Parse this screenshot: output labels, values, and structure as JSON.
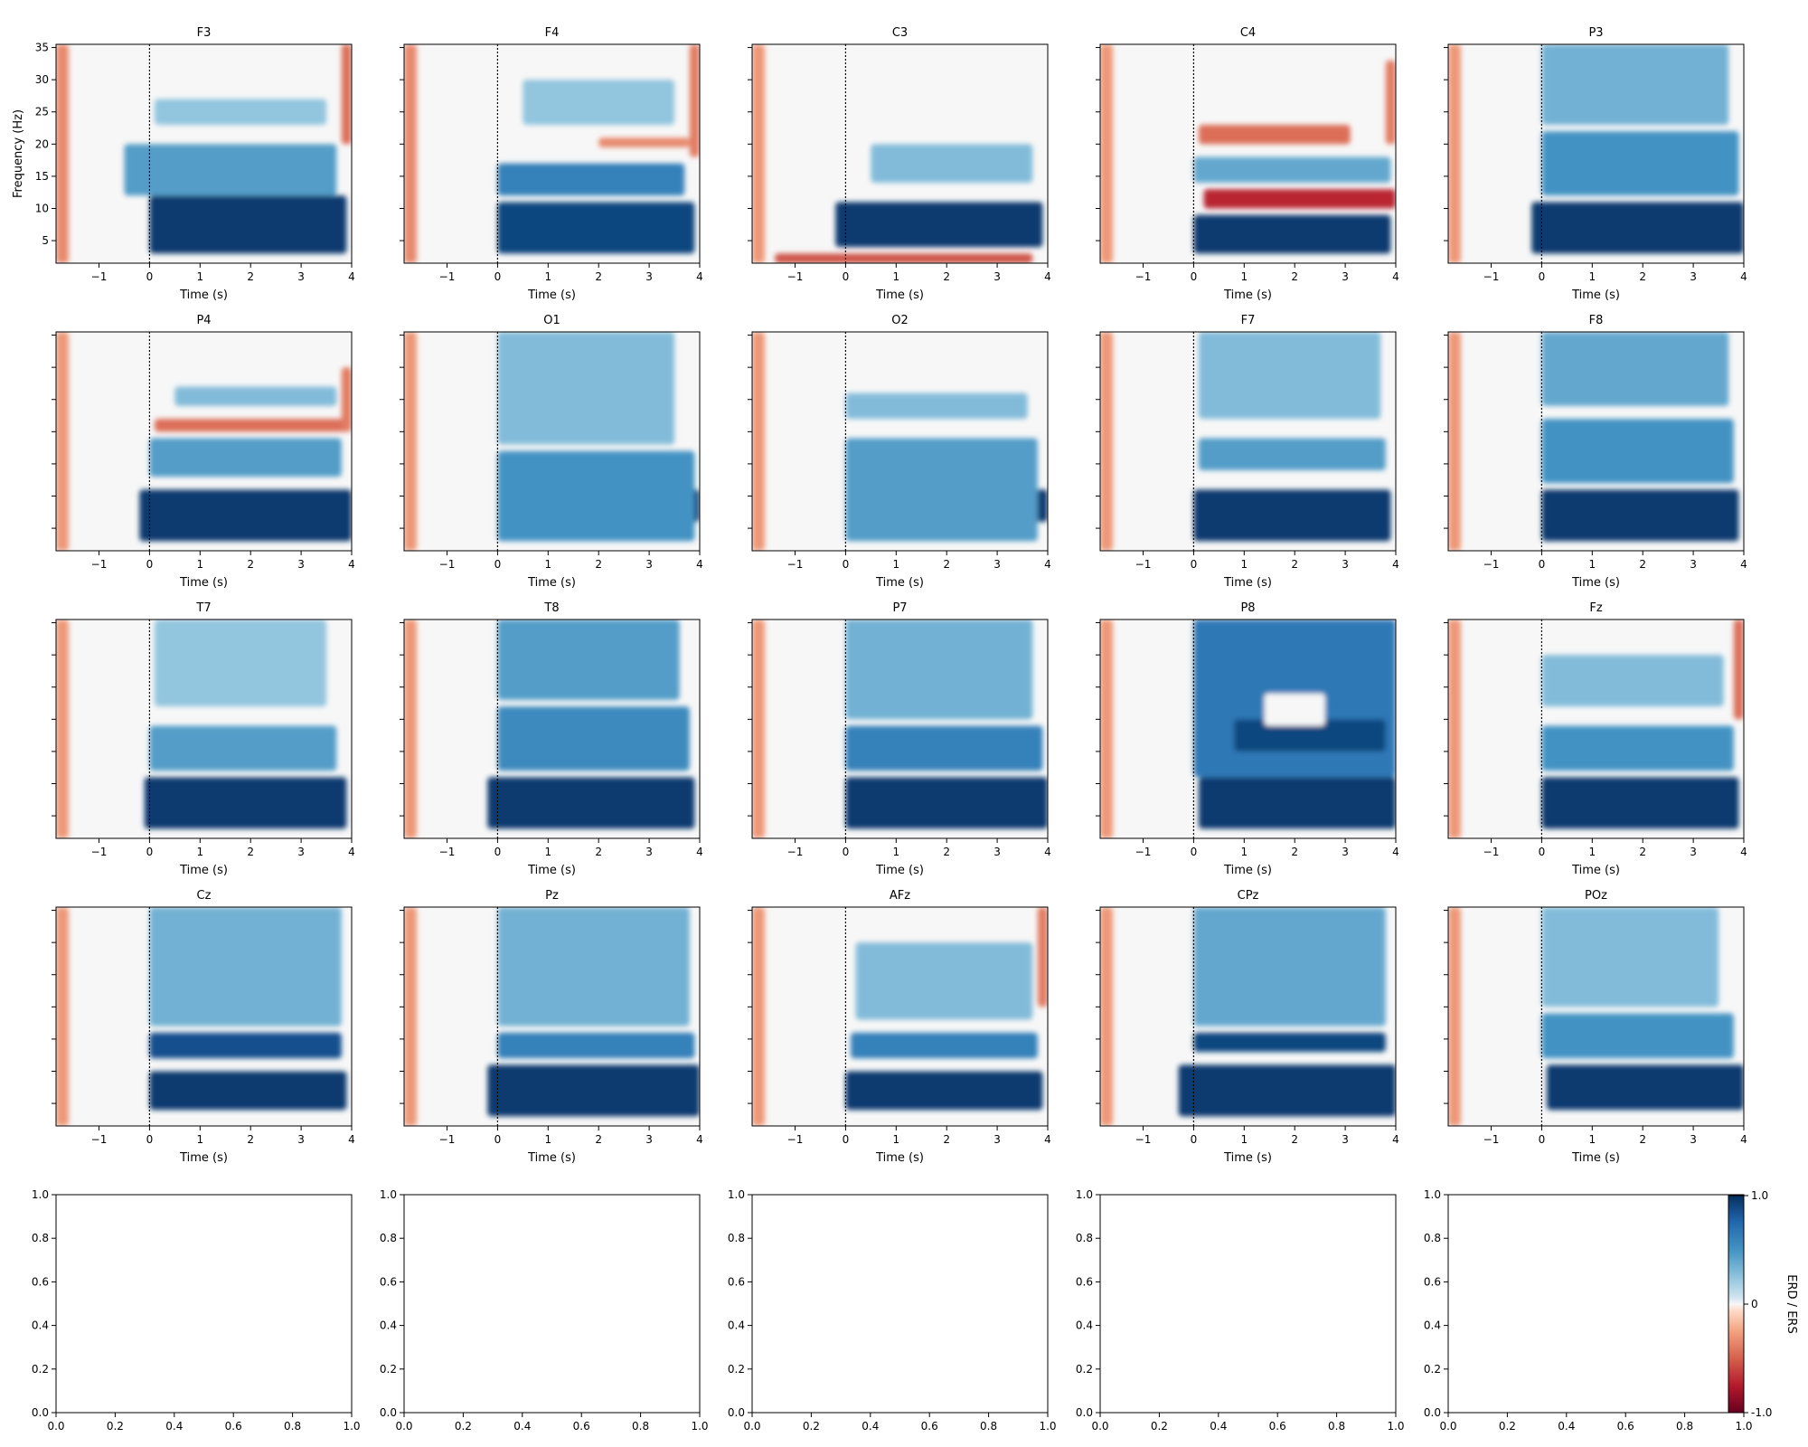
{
  "chart_data": {
    "type": "heatmap",
    "x_unit": "s",
    "xlim": [
      -1.85,
      4
    ],
    "ylim": [
      1.5,
      35.5
    ],
    "xticks": [
      -1,
      0,
      1,
      2,
      3,
      4
    ],
    "xtick_labels": [
      "−1",
      "0",
      "1",
      "2",
      "3",
      "4"
    ],
    "yticks": [
      5,
      10,
      15,
      20,
      25,
      30,
      35
    ],
    "xlabel": "Time (s)",
    "ylabel": "Frequency (Hz)",
    "event_marker_time": 0,
    "colorbar": {
      "label": "ERD / ERS",
      "ticks": [
        1.0,
        0,
        -1.0
      ],
      "tick_labels": [
        "1.0",
        "0",
        "-1.0"
      ],
      "range": [
        -1.0,
        1.0
      ],
      "colormap": "RdBu",
      "color_high": "#053061",
      "color_zero": "#f7f7f7",
      "color_low": "#67001f"
    },
    "channels": [
      {
        "name": "F3",
        "features": [
          {
            "t": [
              0,
              3.9
            ],
            "f": [
              3,
              12
            ],
            "v": 0.95
          },
          {
            "t": [
              -0.5,
              3.7
            ],
            "f": [
              12,
              20
            ],
            "v": 0.45
          },
          {
            "t": [
              0.1,
              3.5
            ],
            "f": [
              23,
              27
            ],
            "v": 0.25
          },
          {
            "t": [
              -1.85,
              -1.6
            ],
            "f": [
              1.5,
              35.5
            ],
            "v": -0.35
          },
          {
            "t": [
              3.8,
              4
            ],
            "f": [
              20,
              35.5
            ],
            "v": -0.45
          }
        ]
      },
      {
        "name": "F4",
        "features": [
          {
            "t": [
              0,
              3.9
            ],
            "f": [
              3,
              11
            ],
            "v": 0.9
          },
          {
            "t": [
              0,
              3.7
            ],
            "f": [
              12,
              17
            ],
            "v": 0.6
          },
          {
            "t": [
              0.5,
              3.5
            ],
            "f": [
              23,
              30
            ],
            "v": 0.25
          },
          {
            "t": [
              2.0,
              3.8
            ],
            "f": [
              19.5,
              21
            ],
            "v": -0.35
          },
          {
            "t": [
              -1.85,
              -1.6
            ],
            "f": [
              1.5,
              35.5
            ],
            "v": -0.35
          },
          {
            "t": [
              3.8,
              4
            ],
            "f": [
              18,
              35.5
            ],
            "v": -0.4
          }
        ]
      },
      {
        "name": "C3",
        "features": [
          {
            "t": [
              -0.2,
              3.9
            ],
            "f": [
              4,
              11
            ],
            "v": 0.95
          },
          {
            "t": [
              0.5,
              3.7
            ],
            "f": [
              14,
              20
            ],
            "v": 0.3
          },
          {
            "t": [
              -1.4,
              3.7
            ],
            "f": [
              1.5,
              3
            ],
            "v": -0.55
          },
          {
            "t": [
              -1.85,
              -1.6
            ],
            "f": [
              1.5,
              35.5
            ],
            "v": -0.3
          }
        ]
      },
      {
        "name": "C4",
        "features": [
          {
            "t": [
              0,
              3.9
            ],
            "f": [
              3,
              9
            ],
            "v": 0.95
          },
          {
            "t": [
              0.2,
              4
            ],
            "f": [
              10,
              13
            ],
            "v": -0.7
          },
          {
            "t": [
              0,
              3.9
            ],
            "f": [
              14,
              18
            ],
            "v": 0.4
          },
          {
            "t": [
              0.1,
              3.1
            ],
            "f": [
              20,
              23
            ],
            "v": -0.45
          },
          {
            "t": [
              -1.85,
              -1.6
            ],
            "f": [
              1.5,
              35.5
            ],
            "v": -0.3
          },
          {
            "t": [
              3.8,
              4
            ],
            "f": [
              20,
              33
            ],
            "v": -0.4
          }
        ]
      },
      {
        "name": "P3",
        "features": [
          {
            "t": [
              -0.2,
              4
            ],
            "f": [
              3,
              11
            ],
            "v": 0.95
          },
          {
            "t": [
              0,
              3.9
            ],
            "f": [
              12,
              22
            ],
            "v": 0.5
          },
          {
            "t": [
              0,
              3.7
            ],
            "f": [
              23,
              35.5
            ],
            "v": 0.35
          },
          {
            "t": [
              -1.85,
              -1.6
            ],
            "f": [
              1.5,
              35.5
            ],
            "v": -0.3
          }
        ]
      },
      {
        "name": "P4",
        "features": [
          {
            "t": [
              -0.2,
              4
            ],
            "f": [
              3,
              11
            ],
            "v": 0.95
          },
          {
            "t": [
              0,
              3.8
            ],
            "f": [
              13,
              19
            ],
            "v": 0.45
          },
          {
            "t": [
              0.1,
              4
            ],
            "f": [
              20,
              22
            ],
            "v": -0.45
          },
          {
            "t": [
              0.5,
              3.7
            ],
            "f": [
              24,
              27
            ],
            "v": 0.3
          },
          {
            "t": [
              -1.85,
              -1.6
            ],
            "f": [
              1.5,
              35.5
            ],
            "v": -0.3
          },
          {
            "t": [
              3.8,
              4
            ],
            "f": [
              20,
              30
            ],
            "v": -0.4
          }
        ]
      },
      {
        "name": "O1",
        "features": [
          {
            "t": [
              1.0,
              4
            ],
            "f": [
              6,
              11
            ],
            "v": 0.95
          },
          {
            "t": [
              0,
              3.9
            ],
            "f": [
              3,
              17
            ],
            "v": 0.5
          },
          {
            "t": [
              0,
              3.5
            ],
            "f": [
              18,
              35.5
            ],
            "v": 0.3
          },
          {
            "t": [
              -1.85,
              -1.6
            ],
            "f": [
              1.5,
              35.5
            ],
            "v": -0.3
          }
        ]
      },
      {
        "name": "O2",
        "features": [
          {
            "t": [
              0.5,
              4
            ],
            "f": [
              6,
              11
            ],
            "v": 0.95
          },
          {
            "t": [
              0,
              3.8
            ],
            "f": [
              3,
              19
            ],
            "v": 0.45
          },
          {
            "t": [
              0,
              3.6
            ],
            "f": [
              22,
              26
            ],
            "v": 0.3
          },
          {
            "t": [
              -1.85,
              -1.6
            ],
            "f": [
              1.5,
              35.5
            ],
            "v": -0.3
          }
        ]
      },
      {
        "name": "F7",
        "features": [
          {
            "t": [
              0,
              3.9
            ],
            "f": [
              3,
              11
            ],
            "v": 0.95
          },
          {
            "t": [
              0.1,
              3.8
            ],
            "f": [
              14,
              19
            ],
            "v": 0.45
          },
          {
            "t": [
              0.1,
              3.7
            ],
            "f": [
              22,
              35.5
            ],
            "v": 0.3
          },
          {
            "t": [
              -1.85,
              -1.6
            ],
            "f": [
              1.5,
              35.5
            ],
            "v": -0.3
          }
        ]
      },
      {
        "name": "F8",
        "features": [
          {
            "t": [
              0,
              3.9
            ],
            "f": [
              3,
              11
            ],
            "v": 0.95
          },
          {
            "t": [
              0,
              3.8
            ],
            "f": [
              12,
              22
            ],
            "v": 0.5
          },
          {
            "t": [
              0,
              3.7
            ],
            "f": [
              24,
              35.5
            ],
            "v": 0.4
          },
          {
            "t": [
              -1.85,
              -1.6
            ],
            "f": [
              1.5,
              35.5
            ],
            "v": -0.3
          }
        ]
      },
      {
        "name": "T7",
        "features": [
          {
            "t": [
              -0.1,
              3.9
            ],
            "f": [
              3,
              11
            ],
            "v": 0.95
          },
          {
            "t": [
              0,
              3.7
            ],
            "f": [
              12,
              19
            ],
            "v": 0.45
          },
          {
            "t": [
              0.1,
              3.5
            ],
            "f": [
              22,
              35.5
            ],
            "v": 0.25
          },
          {
            "t": [
              -1.85,
              -1.6
            ],
            "f": [
              1.5,
              35.5
            ],
            "v": -0.3
          }
        ]
      },
      {
        "name": "T8",
        "features": [
          {
            "t": [
              -0.2,
              3.9
            ],
            "f": [
              3,
              11
            ],
            "v": 0.95
          },
          {
            "t": [
              0,
              3.8
            ],
            "f": [
              12,
              22
            ],
            "v": 0.55
          },
          {
            "t": [
              0,
              3.6
            ],
            "f": [
              23,
              35.5
            ],
            "v": 0.45
          },
          {
            "t": [
              -1.85,
              -1.6
            ],
            "f": [
              1.5,
              35.5
            ],
            "v": -0.3
          }
        ]
      },
      {
        "name": "P7",
        "features": [
          {
            "t": [
              0,
              4
            ],
            "f": [
              3,
              11
            ],
            "v": 0.95
          },
          {
            "t": [
              0,
              3.9
            ],
            "f": [
              12,
              19
            ],
            "v": 0.6
          },
          {
            "t": [
              0,
              3.7
            ],
            "f": [
              20,
              35.5
            ],
            "v": 0.35
          },
          {
            "t": [
              -1.85,
              -1.6
            ],
            "f": [
              1.5,
              35.5
            ],
            "v": -0.3
          }
        ]
      },
      {
        "name": "P8",
        "features": [
          {
            "t": [
              0.1,
              4
            ],
            "f": [
              3,
              11
            ],
            "v": 0.95
          },
          {
            "t": [
              0,
              4
            ],
            "f": [
              11,
              35.5
            ],
            "v": 0.65
          },
          {
            "t": [
              0.8,
              3.8
            ],
            "f": [
              15,
              20
            ],
            "v": 0.9
          },
          {
            "t": [
              1.4,
              2.6
            ],
            "f": [
              19,
              24
            ],
            "v": 0.0
          },
          {
            "t": [
              -1.85,
              -1.6
            ],
            "f": [
              1.5,
              35.5
            ],
            "v": -0.3
          }
        ]
      },
      {
        "name": "Fz",
        "features": [
          {
            "t": [
              0,
              3.9
            ],
            "f": [
              3,
              11
            ],
            "v": 0.95
          },
          {
            "t": [
              0,
              3.8
            ],
            "f": [
              12,
              19
            ],
            "v": 0.5
          },
          {
            "t": [
              0,
              3.6
            ],
            "f": [
              22,
              30
            ],
            "v": 0.3
          },
          {
            "t": [
              -1.85,
              -1.6
            ],
            "f": [
              1.5,
              35.5
            ],
            "v": -0.3
          },
          {
            "t": [
              3.8,
              4
            ],
            "f": [
              20,
              35.5
            ],
            "v": -0.45
          }
        ]
      },
      {
        "name": "Cz",
        "features": [
          {
            "t": [
              0,
              3.9
            ],
            "f": [
              4,
              10
            ],
            "v": 0.95
          },
          {
            "t": [
              0,
              3.8
            ],
            "f": [
              12,
              16
            ],
            "v": 0.85
          },
          {
            "t": [
              0,
              3.8
            ],
            "f": [
              17,
              35.5
            ],
            "v": 0.35
          },
          {
            "t": [
              -1.85,
              -1.6
            ],
            "f": [
              1.5,
              35.5
            ],
            "v": -0.3
          }
        ]
      },
      {
        "name": "Pz",
        "features": [
          {
            "t": [
              -0.2,
              4
            ],
            "f": [
              3,
              11
            ],
            "v": 0.95
          },
          {
            "t": [
              0,
              3.9
            ],
            "f": [
              12,
              16
            ],
            "v": 0.6
          },
          {
            "t": [
              0,
              3.8
            ],
            "f": [
              17,
              35.5
            ],
            "v": 0.35
          },
          {
            "t": [
              -1.85,
              -1.6
            ],
            "f": [
              1.5,
              35.5
            ],
            "v": -0.3
          }
        ]
      },
      {
        "name": "AFz",
        "features": [
          {
            "t": [
              0,
              3.9
            ],
            "f": [
              4,
              10
            ],
            "v": 0.95
          },
          {
            "t": [
              0.1,
              3.8
            ],
            "f": [
              12,
              16
            ],
            "v": 0.6
          },
          {
            "t": [
              0.2,
              3.7
            ],
            "f": [
              18,
              30
            ],
            "v": 0.3
          },
          {
            "t": [
              -1.85,
              -1.6
            ],
            "f": [
              1.5,
              35.5
            ],
            "v": -0.3
          },
          {
            "t": [
              3.8,
              4
            ],
            "f": [
              20,
              35.5
            ],
            "v": -0.4
          }
        ]
      },
      {
        "name": "CPz",
        "features": [
          {
            "t": [
              -0.3,
              4
            ],
            "f": [
              3,
              11
            ],
            "v": 0.95
          },
          {
            "t": [
              0,
              3.8
            ],
            "f": [
              13,
              16
            ],
            "v": 0.9
          },
          {
            "t": [
              0,
              3.8
            ],
            "f": [
              17,
              35.5
            ],
            "v": 0.4
          },
          {
            "t": [
              -1.85,
              -1.6
            ],
            "f": [
              1.5,
              35.5
            ],
            "v": -0.3
          }
        ]
      },
      {
        "name": "POz",
        "features": [
          {
            "t": [
              0.1,
              4
            ],
            "f": [
              4,
              11
            ],
            "v": 0.95
          },
          {
            "t": [
              0,
              3.8
            ],
            "f": [
              12,
              19
            ],
            "v": 0.5
          },
          {
            "t": [
              0,
              3.5
            ],
            "f": [
              20,
              35.5
            ],
            "v": 0.3
          },
          {
            "t": [
              -1.85,
              -1.6
            ],
            "f": [
              1.5,
              35.5
            ],
            "v": -0.3
          }
        ]
      }
    ],
    "empty_axes": {
      "xlim": [
        0,
        1
      ],
      "ylim": [
        0,
        1
      ],
      "ticks": [
        0,
        0.2,
        0.4,
        0.6,
        0.8,
        1
      ],
      "tick_labels": [
        "0.0",
        "0.2",
        "0.4",
        "0.6",
        "0.8",
        "1.0"
      ],
      "count": 5
    }
  }
}
